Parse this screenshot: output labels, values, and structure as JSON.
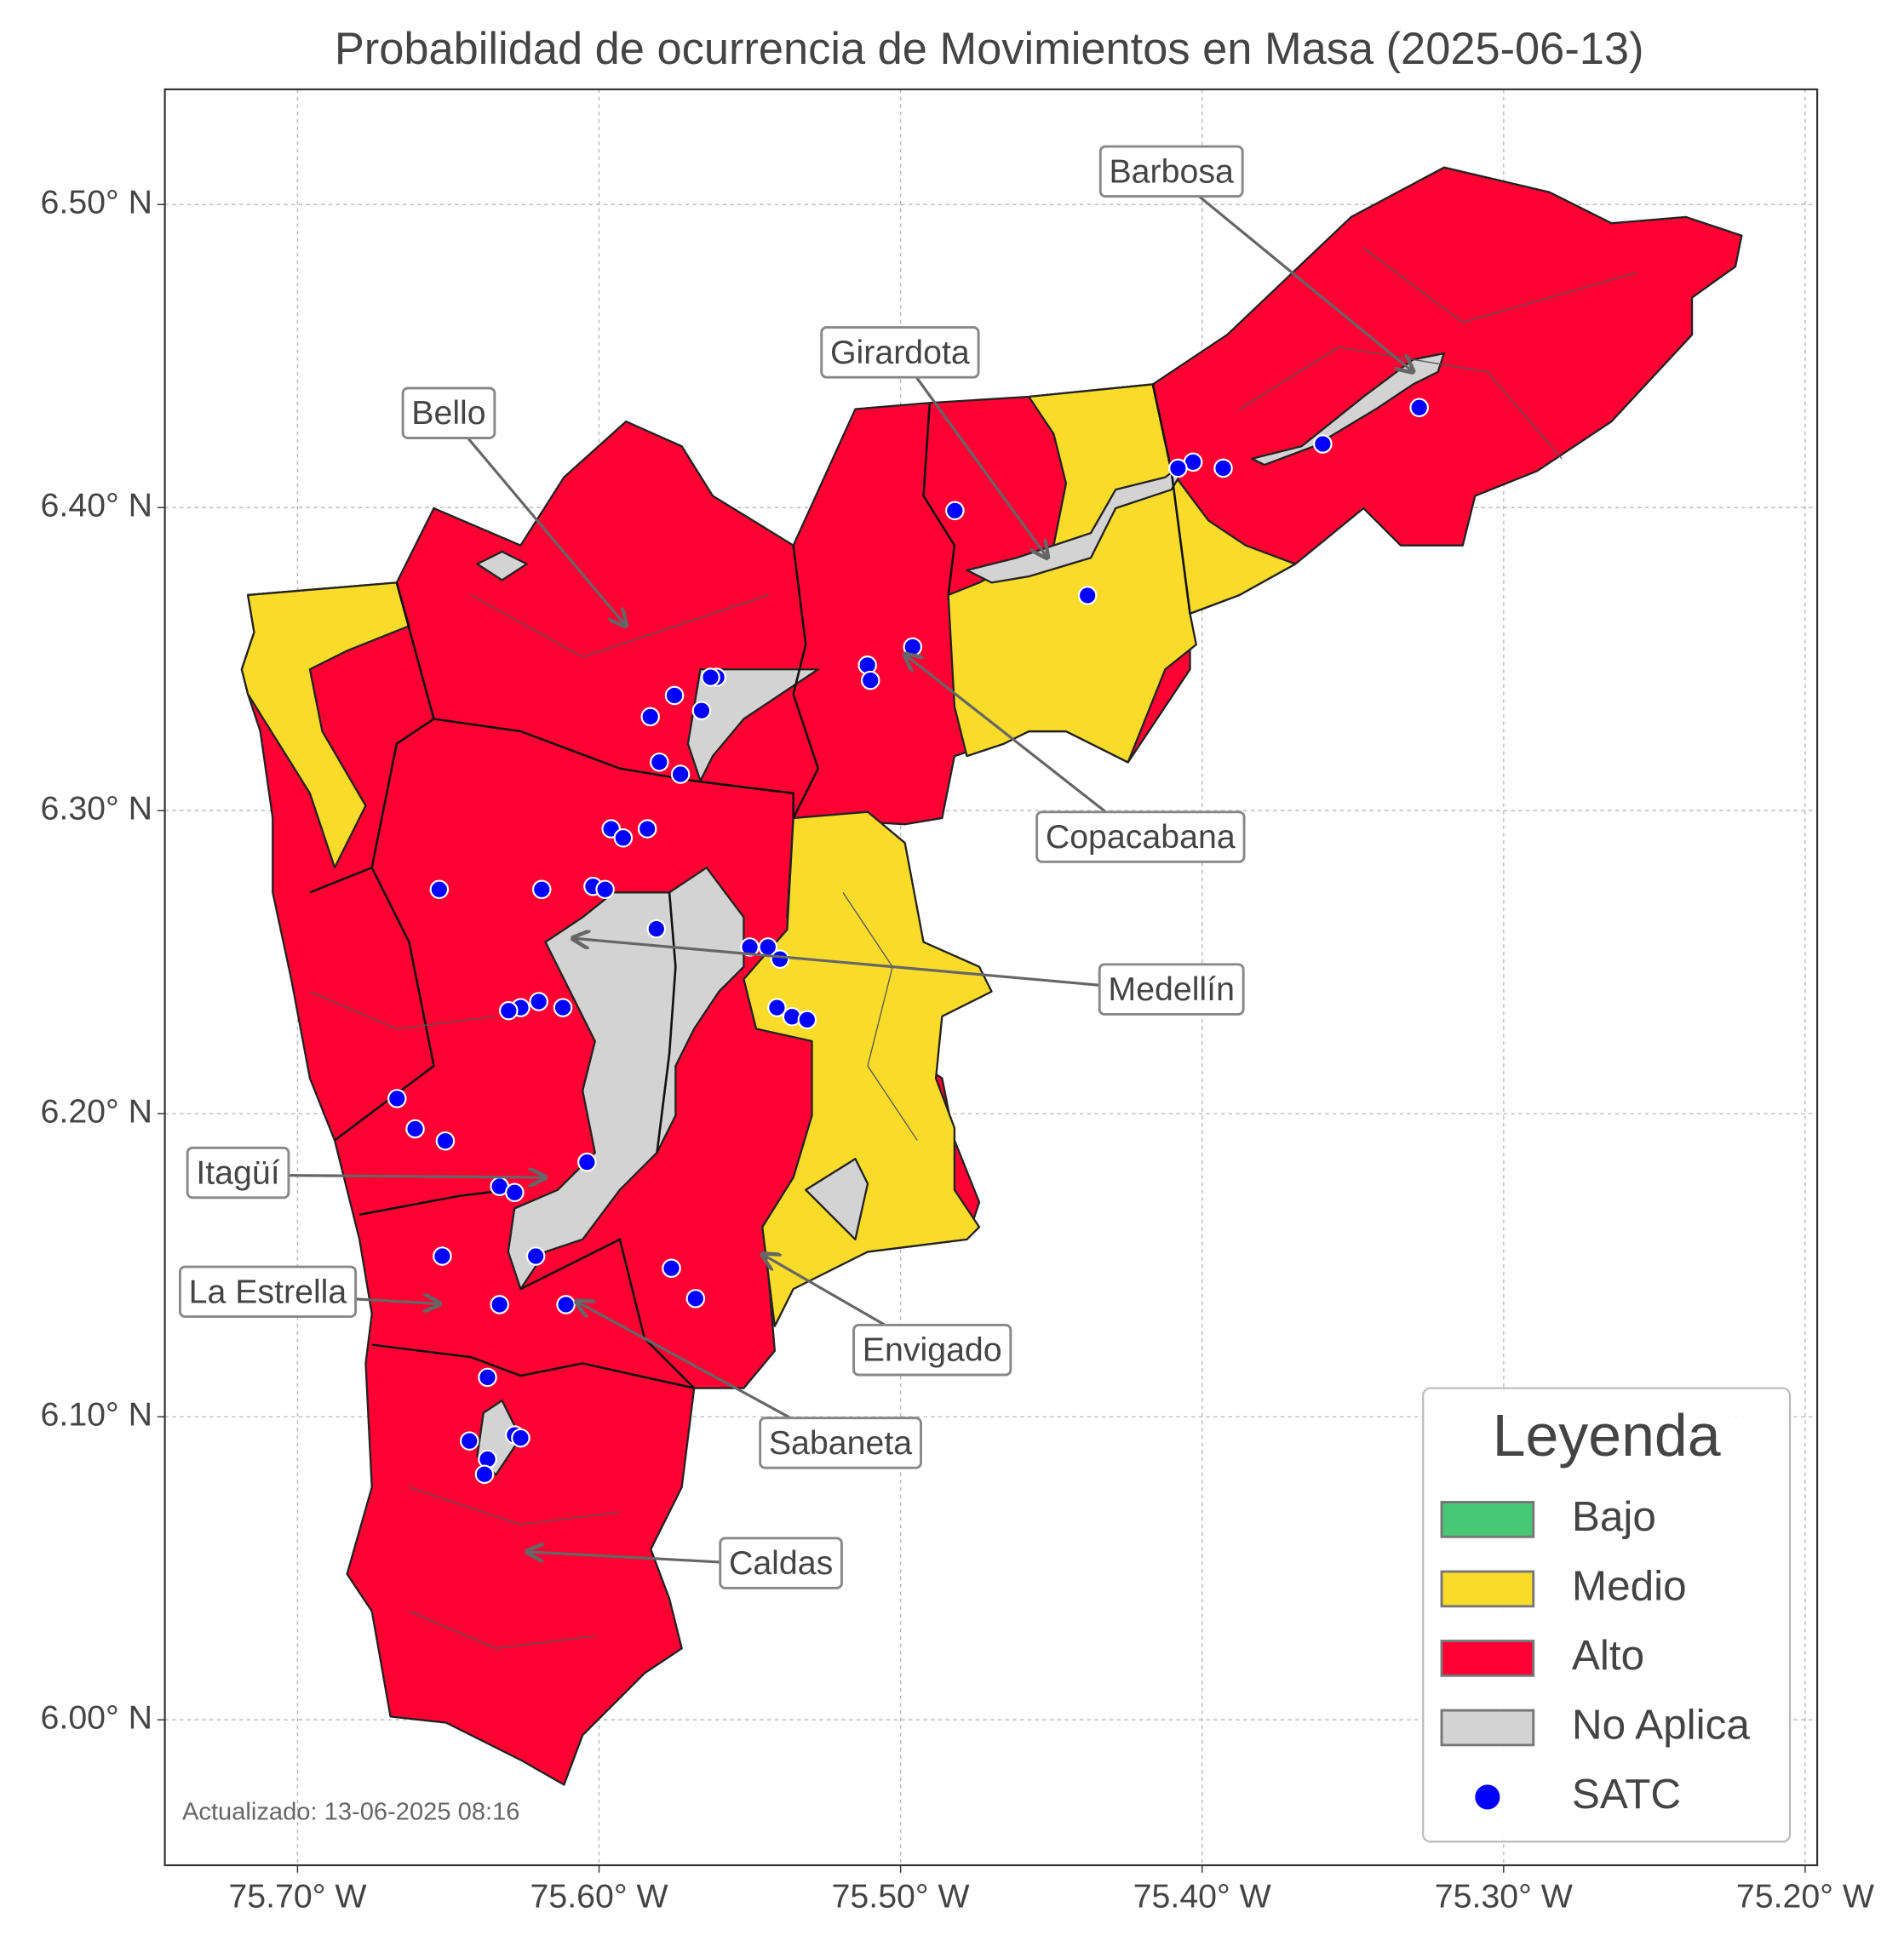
{
  "map": {
    "title": "Probabilidad de ocurrencia de Movimientos en Masa (2025-06-13)",
    "xlim": [
      -75.744,
      -75.196
    ],
    "ylim": [
      5.952,
      6.538
    ],
    "xticks": [
      {
        "value": -75.7,
        "label": "75.70° W"
      },
      {
        "value": -75.6,
        "label": "75.60° W"
      },
      {
        "value": -75.5,
        "label": "75.50° W"
      },
      {
        "value": -75.4,
        "label": "75.40° W"
      },
      {
        "value": -75.3,
        "label": "75.30° W"
      },
      {
        "value": -75.2,
        "label": "75.20° W"
      }
    ],
    "yticks": [
      {
        "value": 6.0,
        "label": "6.00° N"
      },
      {
        "value": 6.1,
        "label": "6.10° N"
      },
      {
        "value": 6.2,
        "label": "6.20° N"
      },
      {
        "value": 6.3,
        "label": "6.30° N"
      },
      {
        "value": 6.4,
        "label": "6.40° N"
      },
      {
        "value": 6.5,
        "label": "6.50° N"
      }
    ],
    "grid": true,
    "annotations": [
      "Barbosa",
      "Girardota",
      "Bello",
      "Copacabana",
      "Medellín",
      "Itagüí",
      "La Estrella",
      "Envigado",
      "Sabaneta",
      "Caldas"
    ],
    "legend": {
      "title": "Leyenda",
      "items": [
        {
          "name": "Bajo",
          "color": "#48c774"
        },
        {
          "name": "Medio",
          "color": "#f9dc2a"
        },
        {
          "name": "Alto",
          "color": "#ff0033"
        },
        {
          "name": "No Aplica",
          "color": "#d3d3d3"
        }
      ]
    },
    "points": {
      "name": "SATC",
      "color": "#0000ff",
      "lon": [
        -75.328,
        -75.36,
        -75.393,
        -75.403,
        -75.408,
        -75.482,
        -75.438,
        -75.496,
        -75.511,
        -75.51,
        -75.561,
        -75.563,
        -75.575,
        -75.583,
        -75.566,
        -75.58,
        -75.573,
        -75.596,
        -75.592,
        -75.584,
        -75.602,
        -75.598,
        -75.619,
        -75.653,
        -75.581,
        -75.55,
        -75.544,
        -75.54,
        -75.541,
        -75.536,
        -75.531,
        -75.612,
        -75.62,
        -75.626,
        -75.63,
        -75.667,
        -75.661,
        -75.651,
        -75.604,
        -75.633,
        -75.628,
        -75.652,
        -75.621,
        -75.576,
        -75.568,
        -75.633,
        -75.611,
        -75.637,
        -75.643,
        -75.628,
        -75.626,
        -75.637,
        -75.638
      ],
      "lat": [
        6.433,
        6.421,
        6.413,
        6.415,
        6.413,
        6.399,
        6.371,
        6.354,
        6.348,
        6.343,
        6.344,
        6.344,
        6.338,
        6.331,
        6.333,
        6.316,
        6.312,
        6.294,
        6.291,
        6.294,
        6.275,
        6.274,
        6.274,
        6.274,
        6.261,
        6.255,
        6.255,
        6.251,
        6.235,
        6.232,
        6.231,
        6.235,
        6.237,
        6.235,
        6.234,
        6.205,
        6.195,
        6.191,
        6.184,
        6.176,
        6.174,
        6.153,
        6.153,
        6.149,
        6.139,
        6.137,
        6.137,
        6.113,
        6.092,
        6.094,
        6.093,
        6.086,
        6.081
      ]
    },
    "footnote": "Actualizado: 13-06-2025 08:16"
  }
}
